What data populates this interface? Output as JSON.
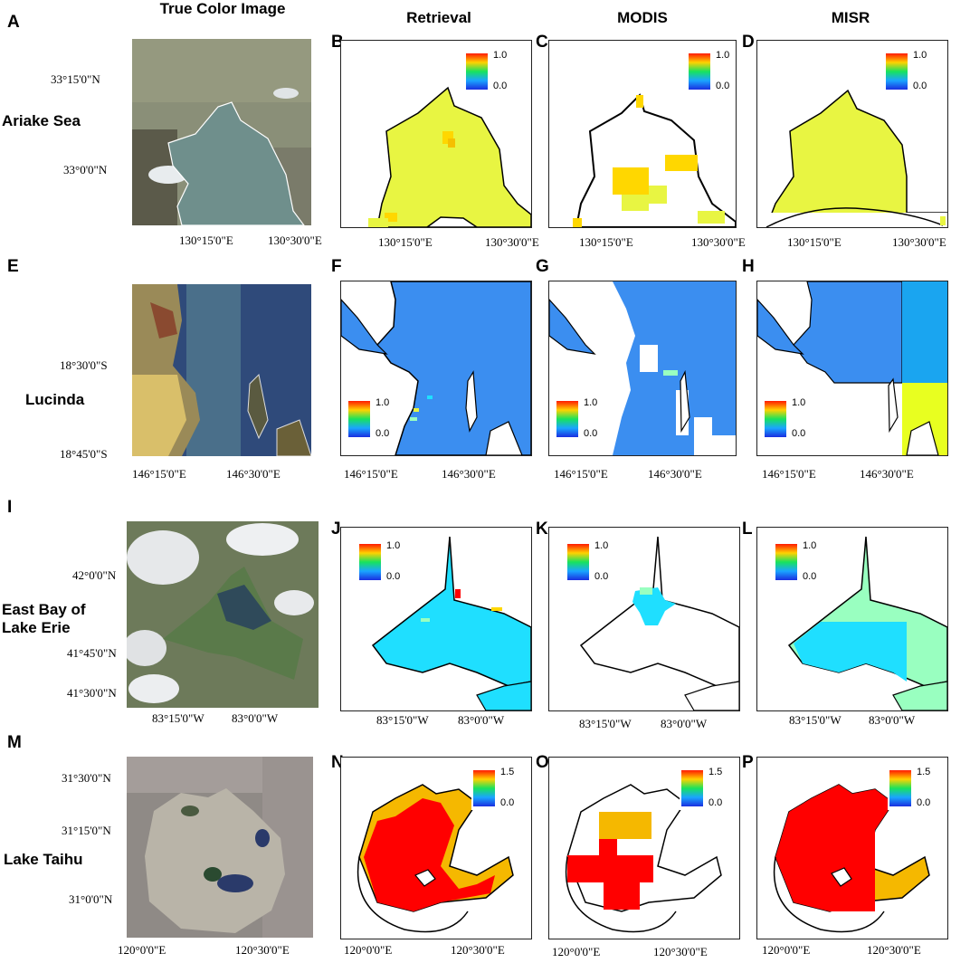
{
  "columns": [
    "True Color Image",
    "Retrieval",
    "MODIS",
    "MISR"
  ],
  "rows": [
    {
      "name": "Ariake Sea",
      "letters": [
        "A",
        "B",
        "C",
        "D"
      ],
      "lat_ticks": [
        "33°15'0\"N",
        "33°0'0\"N"
      ],
      "lon_ticks": [
        "130°15'0\"E",
        "130°30'0\"E"
      ],
      "legend": {
        "max": "1.0",
        "min": "0.0"
      }
    },
    {
      "name": "Lucinda",
      "letters": [
        "E",
        "F",
        "G",
        "H"
      ],
      "lat_ticks": [
        "18°30'0\"S",
        "18°45'0\"S"
      ],
      "lon_ticks": [
        "146°15'0\"E",
        "146°30'0\"E"
      ],
      "legend": {
        "max": "1.0",
        "min": "0.0"
      }
    },
    {
      "name": "East Bay of Lake Erie",
      "name_lines": [
        "East Bay of",
        "Lake Erie"
      ],
      "letters": [
        "I",
        "J",
        "K",
        "L"
      ],
      "lat_ticks": [
        "42°0'0\"N",
        "41°45'0\"N",
        "41°30'0\"N"
      ],
      "lon_ticks": [
        "83°15'0\"W",
        "83°0'0\"W"
      ],
      "legend": {
        "max": "1.0",
        "min": "0.0"
      }
    },
    {
      "name": "Lake Taihu",
      "letters": [
        "M",
        "N",
        "O",
        "P"
      ],
      "lat_ticks": [
        "31°30'0\"N",
        "31°15'0\"N",
        "31°0'0\"N"
      ],
      "lon_ticks": [
        "120°0'0\"E",
        "120°30'0\"E"
      ],
      "legend": {
        "max": "1.5",
        "min": "0.0"
      }
    }
  ],
  "colors": {
    "yellow_green": "#e8f542",
    "yellow": "#ffd700",
    "blue": "#3b8ef0",
    "cyan": "#1fdfff",
    "mint": "#99ffc0",
    "red": "#ff0000",
    "orange": "#f5b800",
    "water_ariake": "#6f8f8c",
    "water_lucinda": "#2f4a7a",
    "water_erie": "#5a7a4a",
    "water_taihu": "#b9b4a8"
  }
}
